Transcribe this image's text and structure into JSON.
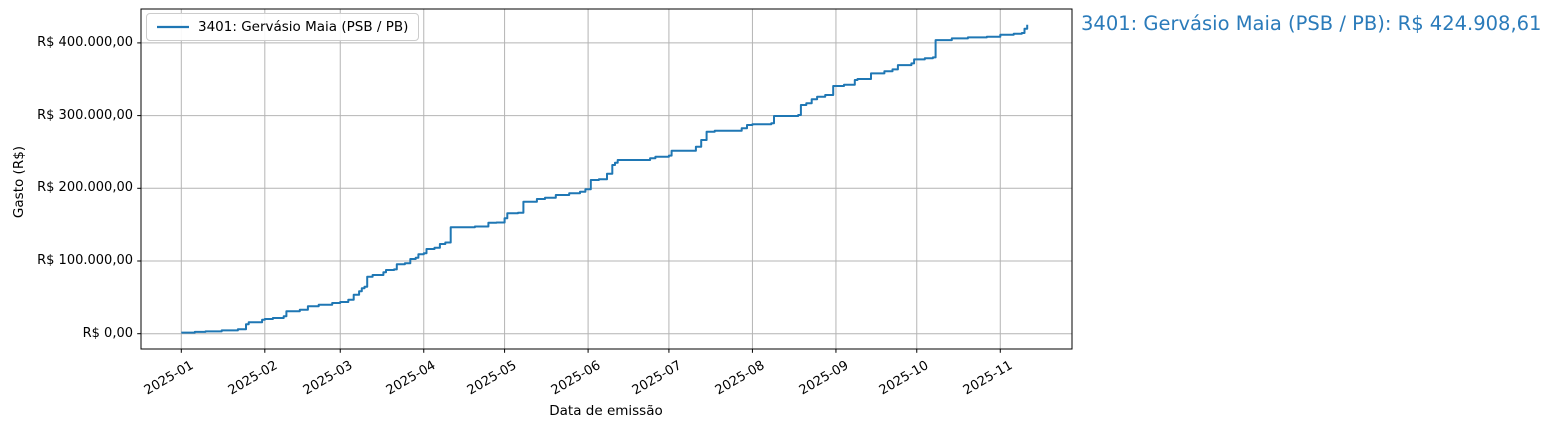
{
  "annotation": {
    "text": "3401: Gervásio Maia (PSB / PB): R$ 424.908,61",
    "color": "#2b7bba"
  },
  "chart_data": {
    "type": "line",
    "title": "",
    "xlabel": "Data de emissão",
    "ylabel": "Gasto (R$)",
    "legend": [
      "3401: Gervásio Maia (PSB / PB)"
    ],
    "legend_position": "upper left",
    "grid": true,
    "grid_color": "#b4b4b4",
    "line_color": "#1f77b4",
    "step_style": "post",
    "xlim": [
      "2024-12-17",
      "2025-11-27"
    ],
    "ylim": [
      -21245,
      446154
    ],
    "x_ticks": [
      {
        "label": "2025-01"
      },
      {
        "label": "2025-02"
      },
      {
        "label": "2025-03"
      },
      {
        "label": "2025-04"
      },
      {
        "label": "2025-05"
      },
      {
        "label": "2025-06"
      },
      {
        "label": "2025-07"
      },
      {
        "label": "2025-08"
      },
      {
        "label": "2025-09"
      },
      {
        "label": "2025-10"
      },
      {
        "label": "2025-11"
      }
    ],
    "y_ticks": [
      {
        "label": "R$ 0,00",
        "value": 0
      },
      {
        "label": "R$ 100.000,00",
        "value": 100000
      },
      {
        "label": "R$ 200.000,00",
        "value": 200000
      },
      {
        "label": "R$ 300.000,00",
        "value": 300000
      },
      {
        "label": "R$ 400.000,00",
        "value": 400000
      }
    ],
    "series": [
      {
        "name": "3401: Gervásio Maia (PSB / PB)",
        "final_value_label": "R$ 424.908,61",
        "x": [
          "2025-01-01",
          "2025-01-06",
          "2025-01-10",
          "2025-01-16",
          "2025-01-22",
          "2025-01-25",
          "2025-01-26",
          "2025-01-31",
          "2025-02-01",
          "2025-02-04",
          "2025-02-08",
          "2025-02-09",
          "2025-02-14",
          "2025-02-17",
          "2025-02-21",
          "2025-02-26",
          "2025-03-01",
          "2025-03-04",
          "2025-03-06",
          "2025-03-08",
          "2025-03-09",
          "2025-03-10",
          "2025-03-11",
          "2025-03-13",
          "2025-03-17",
          "2025-03-18",
          "2025-03-21",
          "2025-03-22",
          "2025-03-25",
          "2025-03-27",
          "2025-03-29",
          "2025-03-30",
          "2025-04-01",
          "2025-04-02",
          "2025-04-05",
          "2025-04-07",
          "2025-04-09",
          "2025-04-11",
          "2025-04-13",
          "2025-04-20",
          "2025-04-25",
          "2025-04-28",
          "2025-05-01",
          "2025-05-02",
          "2025-05-06",
          "2025-05-08",
          "2025-05-13",
          "2025-05-16",
          "2025-05-20",
          "2025-05-25",
          "2025-05-29",
          "2025-05-31",
          "2025-06-02",
          "2025-06-05",
          "2025-06-08",
          "2025-06-10",
          "2025-06-11",
          "2025-06-12",
          "2025-06-24",
          "2025-06-26",
          "2025-07-01",
          "2025-07-02",
          "2025-07-11",
          "2025-07-13",
          "2025-07-15",
          "2025-07-18",
          "2025-07-28",
          "2025-07-30",
          "2025-08-01",
          "2025-08-08",
          "2025-08-09",
          "2025-08-18",
          "2025-08-19",
          "2025-08-21",
          "2025-08-23",
          "2025-08-25",
          "2025-08-28",
          "2025-08-31",
          "2025-09-04",
          "2025-09-08",
          "2025-09-09",
          "2025-09-14",
          "2025-09-19",
          "2025-09-22",
          "2025-09-24",
          "2025-09-29",
          "2025-09-30",
          "2025-10-04",
          "2025-10-07",
          "2025-10-08",
          "2025-10-14",
          "2025-10-20",
          "2025-10-27",
          "2025-11-01",
          "2025-11-06",
          "2025-11-09",
          "2025-11-10",
          "2025-11-11"
        ],
        "y": [
          1500,
          2500,
          3200,
          4500,
          6000,
          13000,
          15700,
          19300,
          20200,
          21600,
          23900,
          30800,
          33000,
          37700,
          39900,
          42200,
          43600,
          46800,
          53600,
          58300,
          62400,
          64700,
          78400,
          80700,
          84400,
          87600,
          88500,
          95400,
          96800,
          102700,
          104500,
          109200,
          110600,
          116500,
          118300,
          123400,
          125500,
          146300,
          146500,
          147500,
          152700,
          153000,
          158700,
          165600,
          166500,
          181600,
          185300,
          187100,
          190800,
          193100,
          195300,
          198600,
          211400,
          212400,
          220000,
          232100,
          235200,
          238900,
          241200,
          243500,
          245000,
          251700,
          257200,
          266400,
          277900,
          279200,
          282500,
          287100,
          288000,
          289400,
          299400,
          300800,
          314600,
          316900,
          322400,
          326000,
          328300,
          340700,
          342500,
          348900,
          350300,
          358100,
          361000,
          363600,
          369500,
          371800,
          377300,
          379000,
          380100,
          403900,
          406200,
          407600,
          408500,
          411300,
          412500,
          413600,
          419500,
          424908.61
        ]
      }
    ]
  }
}
